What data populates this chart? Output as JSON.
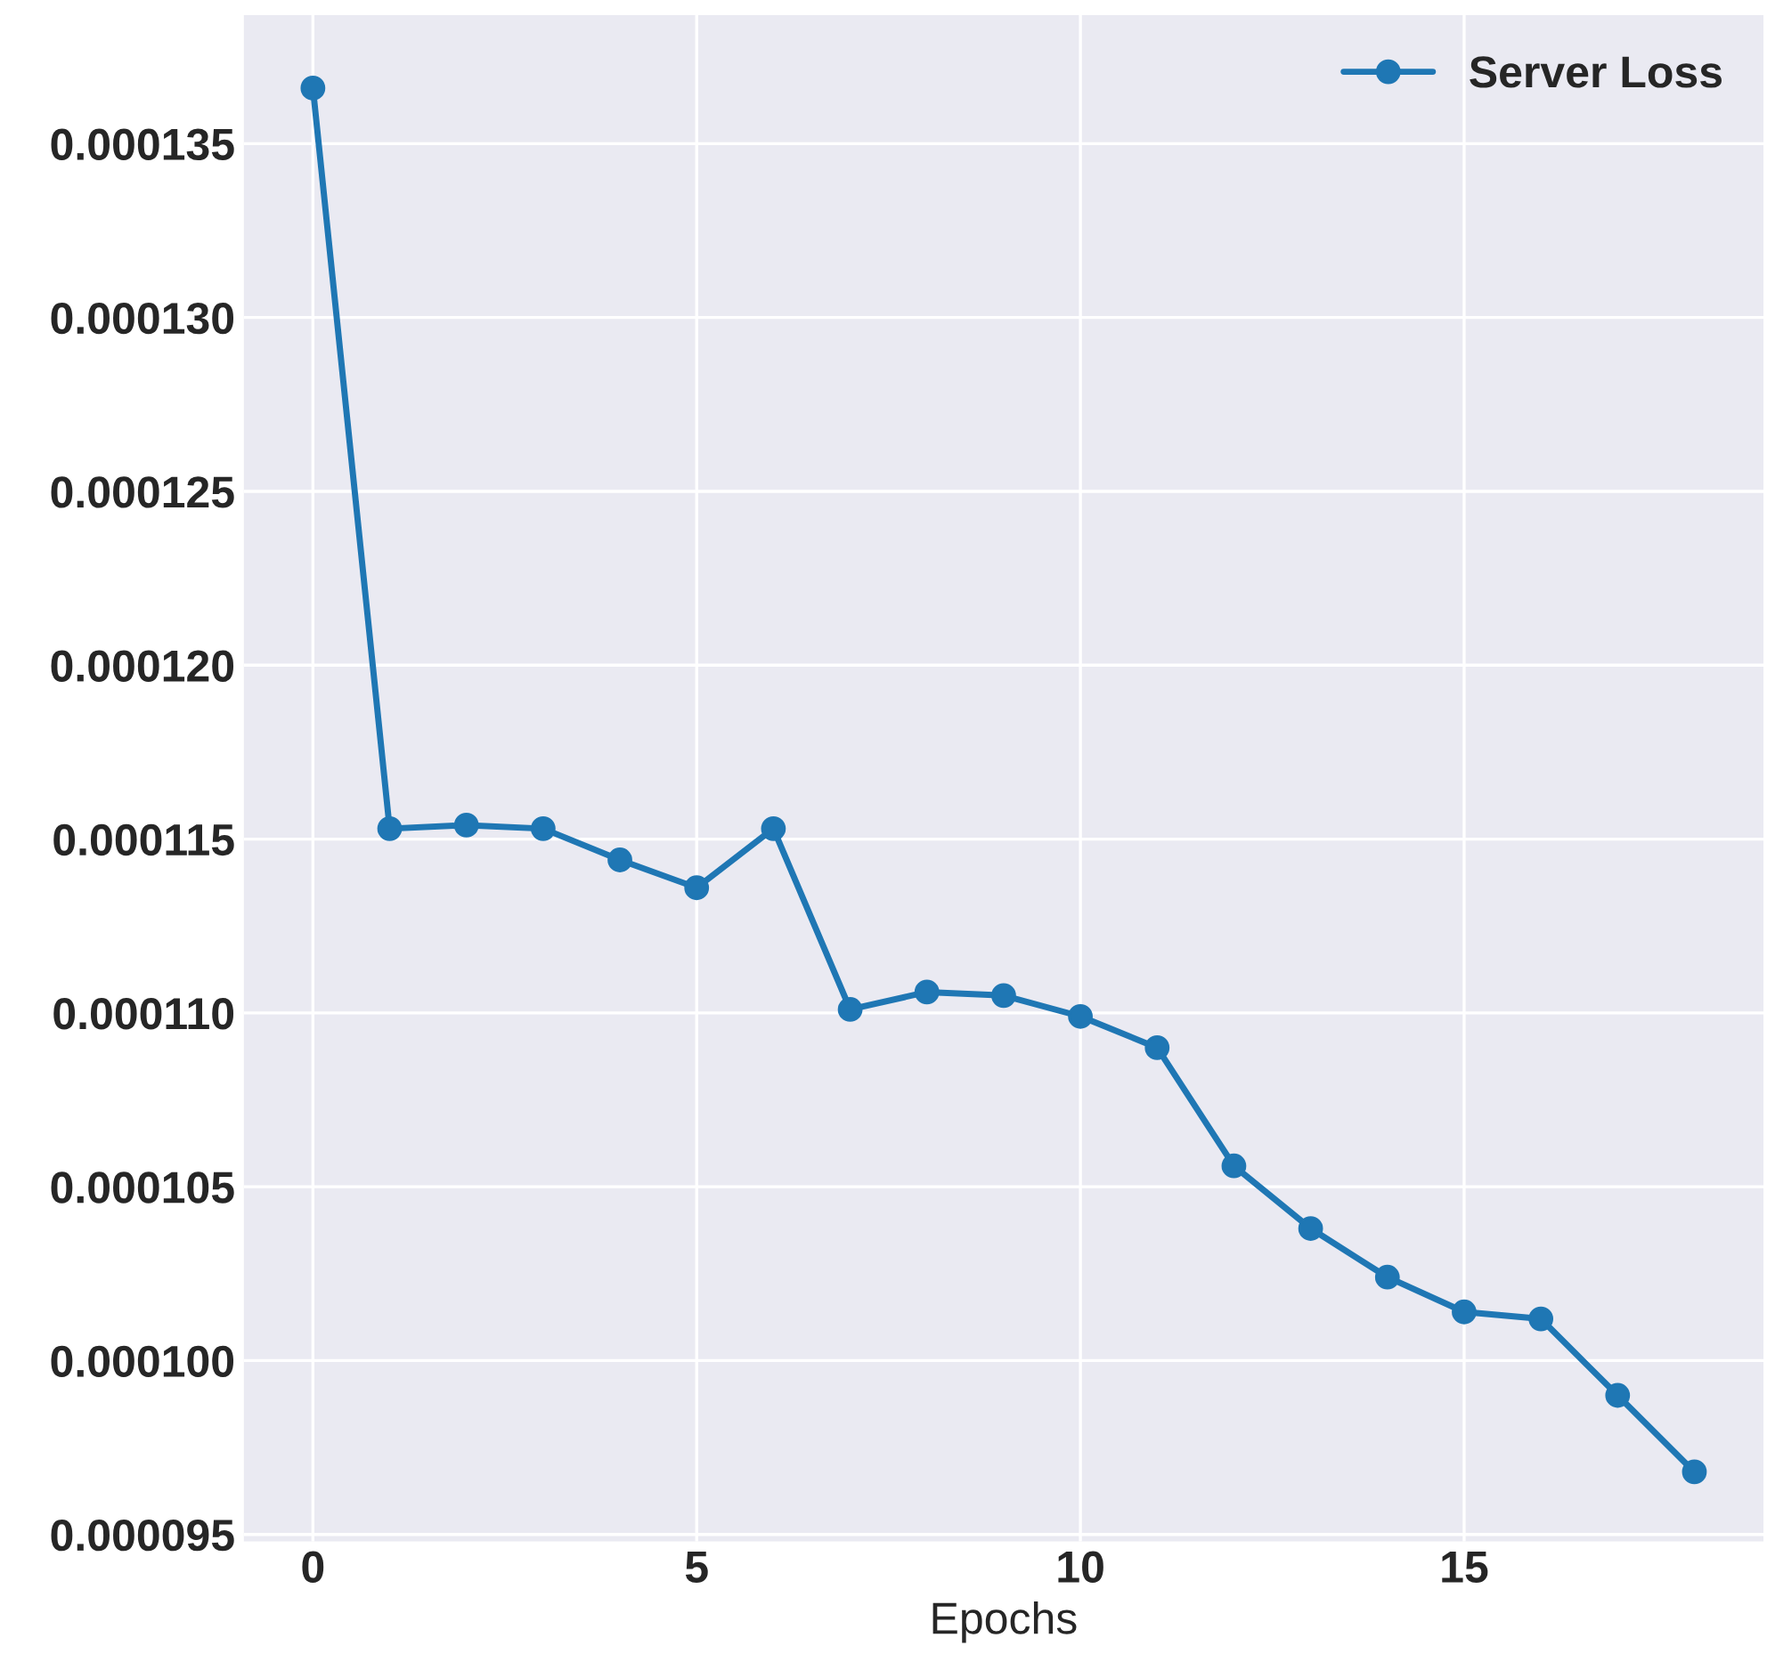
{
  "chart_data": {
    "type": "line",
    "xlabel": "Epochs",
    "x": [
      0,
      1,
      2,
      3,
      4,
      5,
      6,
      7,
      8,
      9,
      10,
      11,
      12,
      13,
      14,
      15,
      16,
      17,
      18
    ],
    "series": [
      {
        "name": "Server Loss",
        "color": "#1f77b4",
        "values": [
          0.0001366,
          0.0001153,
          0.0001154,
          0.0001153,
          0.0001144,
          0.0001136,
          0.0001153,
          0.0001101,
          0.0001106,
          0.0001105,
          0.0001099,
          0.000109,
          0.0001056,
          0.0001038,
          0.0001024,
          0.0001014,
          0.0001012,
          9.9e-05,
          9.68e-05
        ]
      }
    ],
    "xlim": [
      -0.9,
      18.9
    ],
    "xticks": [
      0,
      5,
      10,
      15
    ],
    "ylim": [
      9.48e-05,
      0.0001387
    ],
    "yticks": [
      {
        "value": 9.5e-05,
        "label": "0.000095"
      },
      {
        "value": 0.0001,
        "label": "0.000100"
      },
      {
        "value": 0.000105,
        "label": "0.000105"
      },
      {
        "value": 0.00011,
        "label": "0.000110"
      },
      {
        "value": 0.000115,
        "label": "0.000115"
      },
      {
        "value": 0.00012,
        "label": "0.000120"
      },
      {
        "value": 0.000125,
        "label": "0.000125"
      },
      {
        "value": 0.00013,
        "label": "0.000130"
      },
      {
        "value": 0.000135,
        "label": "0.000135"
      }
    ],
    "grid": true,
    "legend": "top right",
    "marker": "circle",
    "line_style": "solid"
  }
}
